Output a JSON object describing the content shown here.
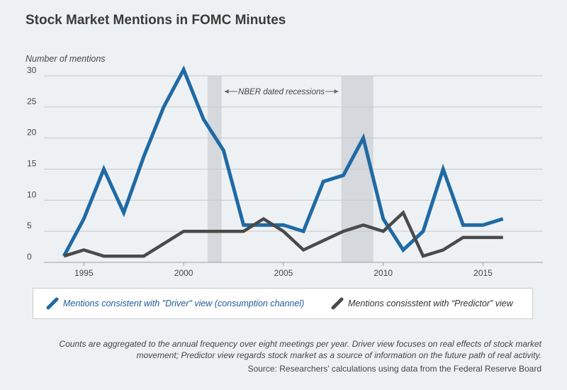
{
  "chart_data": {
    "type": "line",
    "title": "Stock Market Mentions in FOMC Minutes",
    "ylabel": "Number of mentions",
    "xlabel": "",
    "xlim": [
      1993,
      2018
    ],
    "ylim": [
      0,
      30
    ],
    "yticks": [
      0,
      5,
      10,
      15,
      20,
      25,
      30
    ],
    "xticks": [
      1995,
      2000,
      2005,
      2010,
      2015
    ],
    "grid": "horizontal",
    "x": [
      1994,
      1995,
      1996,
      1997,
      1998,
      1999,
      2000,
      2001,
      2002,
      2003,
      2004,
      2005,
      2006,
      2007,
      2008,
      2009,
      2010,
      2011,
      2012,
      2013,
      2014,
      2015,
      2016
    ],
    "series": [
      {
        "name": "Mentions consistent with \"Driver\" view (consumption channel)",
        "color": "#1f6aa5",
        "values": [
          1,
          7,
          15,
          8,
          17,
          25,
          31,
          23,
          18,
          6,
          6,
          6,
          5,
          13,
          14,
          20,
          7,
          2,
          5,
          15,
          6,
          6,
          7
        ]
      },
      {
        "name": "Mentions consisstent with “Predictor” view",
        "color": "#4a4a4a",
        "values": [
          1,
          2,
          1,
          1,
          1,
          3,
          5,
          5,
          5,
          5,
          7,
          5,
          2,
          3.5,
          5,
          6,
          5,
          8,
          1,
          2,
          4,
          4,
          4
        ]
      }
    ],
    "recessions": [
      {
        "start": 2001.2,
        "end": 2001.9
      },
      {
        "start": 2007.9,
        "end": 2009.5
      }
    ],
    "annotation": "NBER dated recessions",
    "legend_position": "bottom"
  },
  "notes": "Counts are aggregated to the annual frequency over eight meetings per year. Driver view focuses on real effects of stock market movement; Predictor view regards stock market as a source of information on the future path of real activity.",
  "source": "Source: Researchers’ calculations using data from the Federal Reserve Board",
  "colors": {
    "background": "#eef1f3",
    "recession_shade": "#d5d8dc",
    "grid": "#c5c9cd"
  }
}
